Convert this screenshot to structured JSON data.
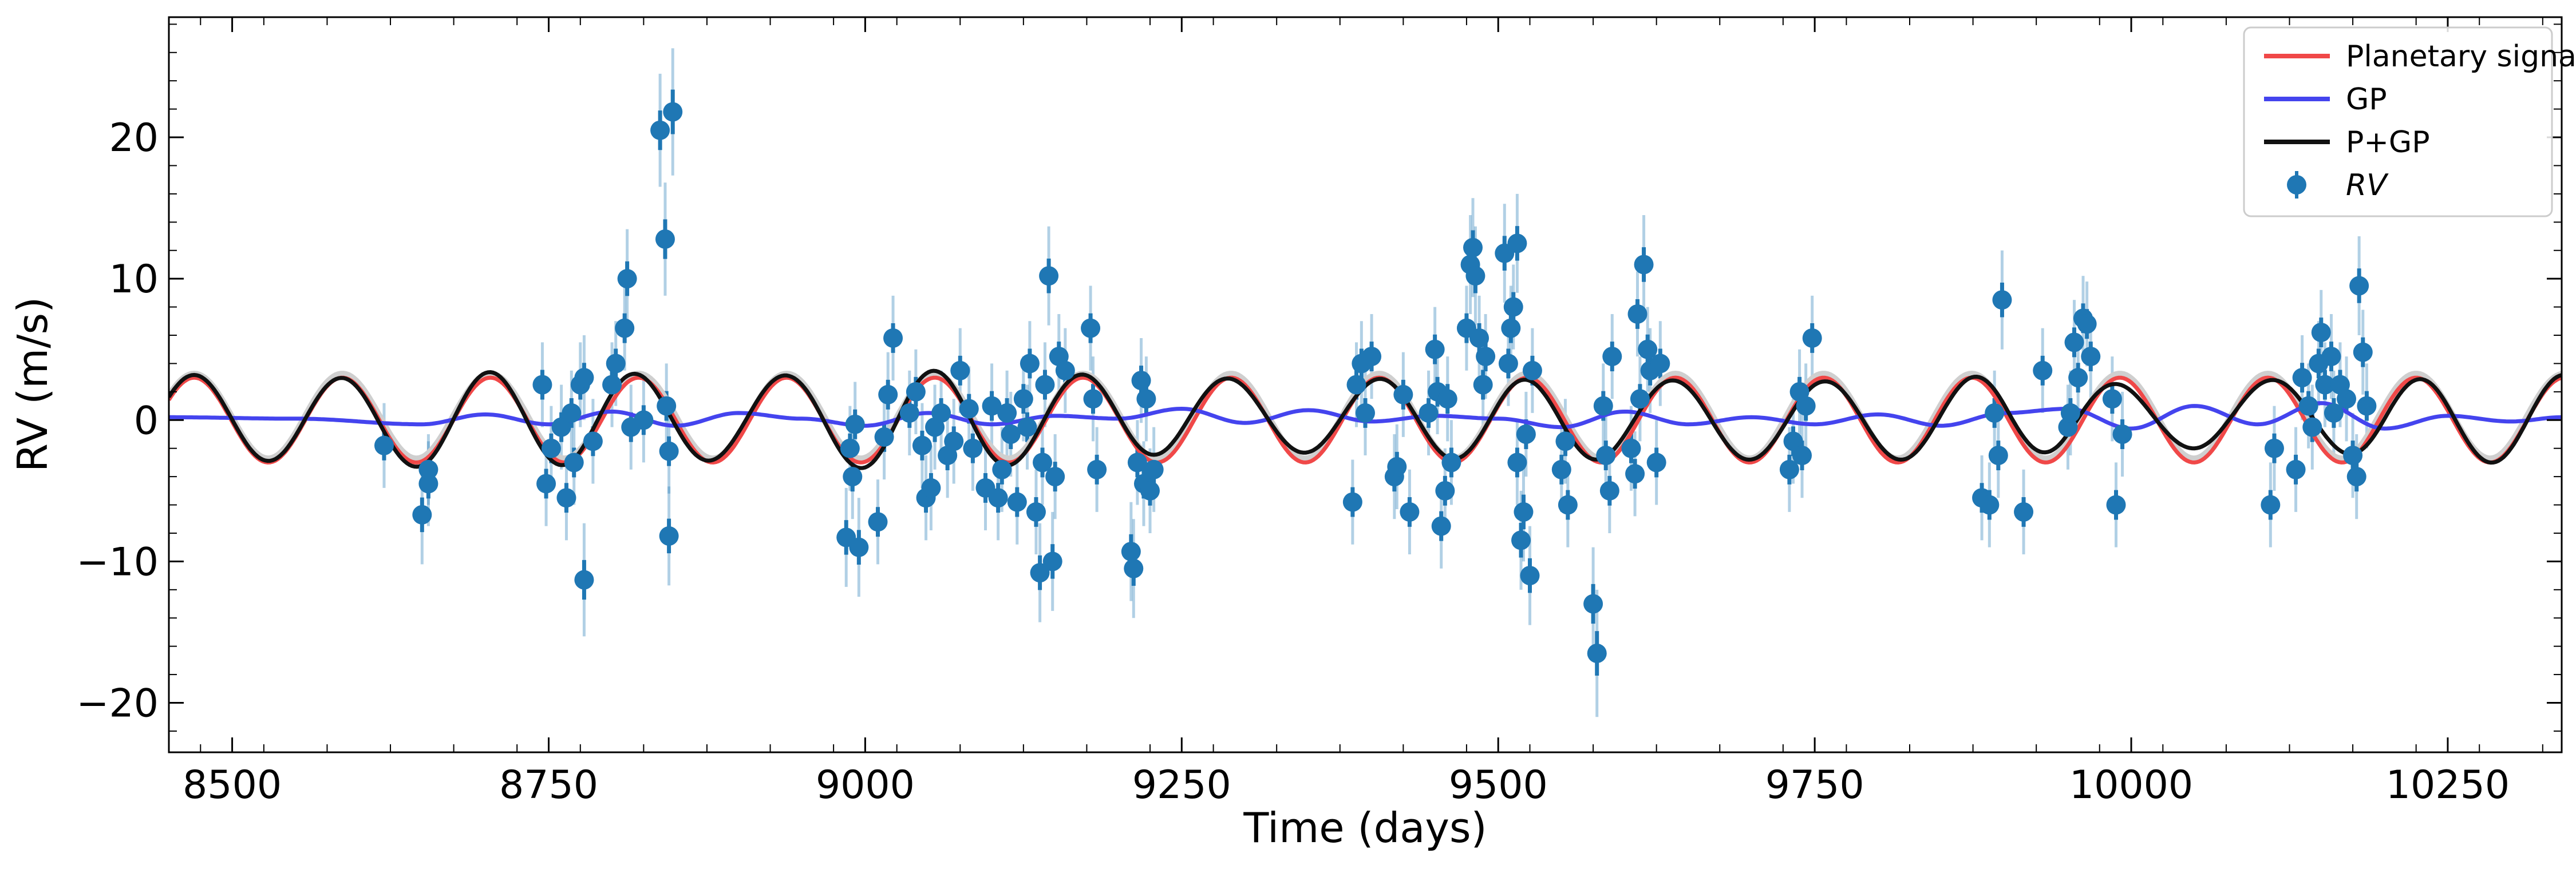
{
  "chart_data": {
    "type": "line",
    "title": "",
    "xlabel": "Time (days)",
    "ylabel": "RV (m/s)",
    "xlim": [
      8450,
      10340
    ],
    "ylim": [
      -23.5,
      28.5
    ],
    "grid": false,
    "legend_position": "top-right",
    "xticks": [
      8500,
      8750,
      9000,
      9250,
      9500,
      9750,
      10000,
      10250
    ],
    "xtick_labels": [
      "8500",
      "8750",
      "9000",
      "9250",
      "9500",
      "9750",
      "10000",
      "10250"
    ],
    "yticks": [
      -20,
      -10,
      0,
      10,
      20
    ],
    "ytick_labels": [
      "−20",
      "−10",
      "0",
      "10",
      "20"
    ],
    "legend": [
      {
        "label": "Planetary signal",
        "color": "#f04848",
        "kind": "line"
      },
      {
        "label": "GP",
        "color": "#4444ee",
        "kind": "line"
      },
      {
        "label": "P+GP",
        "color": "#111111",
        "kind": "line"
      },
      {
        "label": "RV",
        "color": "#1f77b4",
        "kind": "errorbar",
        "italic": true
      }
    ],
    "series": [
      {
        "name": "Planetary signal",
        "color": "#f04848",
        "model": {
          "amplitude": 3.0,
          "period": 117,
          "t_peak": 8470
        }
      },
      {
        "name": "GP",
        "color": "#4444ee",
        "x": [
          8450,
          8550,
          8650,
          8700,
          8750,
          8800,
          8850,
          8900,
          8950,
          9000,
          9050,
          9100,
          9150,
          9200,
          9250,
          9300,
          9350,
          9400,
          9450,
          9500,
          9550,
          9600,
          9650,
          9700,
          9750,
          9800,
          9850,
          9900,
          9950,
          10000,
          10050,
          10100,
          10150,
          10200,
          10250,
          10300,
          10340
        ],
        "y": [
          0.2,
          0.1,
          -0.3,
          0.4,
          -0.3,
          0.6,
          -0.4,
          0.5,
          0.1,
          -0.4,
          0.5,
          -0.3,
          0.3,
          0.1,
          0.8,
          -0.2,
          0.7,
          -0.1,
          0.3,
          0.1,
          -0.5,
          0.6,
          -0.3,
          0.2,
          -0.3,
          0.4,
          -0.4,
          0.5,
          0.8,
          -0.6,
          1.0,
          -0.3,
          1.2,
          -0.6,
          0.3,
          -0.1,
          0.2
        ]
      },
      {
        "name": "P+GP",
        "color": "#111111",
        "model": "Planetary signal + GP"
      },
      {
        "name": "RV",
        "color": "#1f77b4",
        "points": [
          {
            "x": 8620,
            "y": -1.8,
            "err": 3.0
          },
          {
            "x": 8650,
            "y": -6.7,
            "err": 3.5
          },
          {
            "x": 8655,
            "y": -4.5,
            "err": 3.0
          },
          {
            "x": 8655,
            "y": -3.5,
            "err": 2.5
          },
          {
            "x": 8745,
            "y": 2.5,
            "err": 3.0
          },
          {
            "x": 8748,
            "y": -4.5,
            "err": 3.0
          },
          {
            "x": 8752,
            "y": -2.0,
            "err": 3.0
          },
          {
            "x": 8760,
            "y": -0.5,
            "err": 3.0
          },
          {
            "x": 8764,
            "y": -5.5,
            "err": 3.0
          },
          {
            "x": 8768,
            "y": 0.5,
            "err": 3.0
          },
          {
            "x": 8770,
            "y": -3.0,
            "err": 3.0
          },
          {
            "x": 8775,
            "y": 2.5,
            "err": 3.0
          },
          {
            "x": 8778,
            "y": 3.0,
            "err": 3.0
          },
          {
            "x": 8778,
            "y": -11.3,
            "err": 4.0
          },
          {
            "x": 8785,
            "y": -1.5,
            "err": 3.0
          },
          {
            "x": 8800,
            "y": 2.5,
            "err": 3.0
          },
          {
            "x": 8803,
            "y": 4.0,
            "err": 3.0
          },
          {
            "x": 8810,
            "y": 6.5,
            "err": 3.0
          },
          {
            "x": 8812,
            "y": 10.0,
            "err": 3.5
          },
          {
            "x": 8815,
            "y": -0.5,
            "err": 3.0
          },
          {
            "x": 8825,
            "y": 0.0,
            "err": 3.0
          },
          {
            "x": 8838,
            "y": 20.5,
            "err": 4.0
          },
          {
            "x": 8842,
            "y": 12.8,
            "err": 4.0
          },
          {
            "x": 8845,
            "y": -2.2,
            "err": 3.0
          },
          {
            "x": 8848,
            "y": 21.8,
            "err": 4.5
          },
          {
            "x": 8845,
            "y": -8.2,
            "err": 3.5
          },
          {
            "x": 8843,
            "y": 1.0,
            "err": 3.0
          },
          {
            "x": 8985,
            "y": -8.3,
            "err": 3.5
          },
          {
            "x": 8988,
            "y": -2.0,
            "err": 3.0
          },
          {
            "x": 8990,
            "y": -4.0,
            "err": 3.0
          },
          {
            "x": 8992,
            "y": -0.3,
            "err": 3.0
          },
          {
            "x": 8995,
            "y": -9.0,
            "err": 3.5
          },
          {
            "x": 9010,
            "y": -7.2,
            "err": 3.0
          },
          {
            "x": 9015,
            "y": -1.2,
            "err": 3.0
          },
          {
            "x": 9018,
            "y": 1.8,
            "err": 3.0
          },
          {
            "x": 9022,
            "y": 5.8,
            "err": 3.0
          },
          {
            "x": 9035,
            "y": 0.5,
            "err": 3.0
          },
          {
            "x": 9040,
            "y": 2.0,
            "err": 3.0
          },
          {
            "x": 9045,
            "y": -1.8,
            "err": 3.0
          },
          {
            "x": 9048,
            "y": -5.5,
            "err": 3.0
          },
          {
            "x": 9052,
            "y": -4.8,
            "err": 3.0
          },
          {
            "x": 9055,
            "y": -0.5,
            "err": 3.0
          },
          {
            "x": 9060,
            "y": 0.5,
            "err": 3.0
          },
          {
            "x": 9065,
            "y": -2.5,
            "err": 3.0
          },
          {
            "x": 9070,
            "y": -1.5,
            "err": 3.0
          },
          {
            "x": 9075,
            "y": 3.5,
            "err": 3.0
          },
          {
            "x": 9082,
            "y": 0.8,
            "err": 3.0
          },
          {
            "x": 9085,
            "y": -2.0,
            "err": 3.0
          },
          {
            "x": 9095,
            "y": -4.8,
            "err": 3.0
          },
          {
            "x": 9100,
            "y": 1.0,
            "err": 3.0
          },
          {
            "x": 9105,
            "y": -5.5,
            "err": 3.0
          },
          {
            "x": 9108,
            "y": -3.5,
            "err": 3.0
          },
          {
            "x": 9112,
            "y": 0.5,
            "err": 3.0
          },
          {
            "x": 9115,
            "y": -1.0,
            "err": 3.0
          },
          {
            "x": 9120,
            "y": -5.8,
            "err": 3.0
          },
          {
            "x": 9125,
            "y": 1.5,
            "err": 3.0
          },
          {
            "x": 9128,
            "y": -0.5,
            "err": 3.0
          },
          {
            "x": 9130,
            "y": 4.0,
            "err": 3.0
          },
          {
            "x": 9135,
            "y": -6.5,
            "err": 3.0
          },
          {
            "x": 9138,
            "y": -10.8,
            "err": 3.5
          },
          {
            "x": 9140,
            "y": -3.0,
            "err": 3.0
          },
          {
            "x": 9142,
            "y": 2.5,
            "err": 3.0
          },
          {
            "x": 9145,
            "y": 10.2,
            "err": 3.5
          },
          {
            "x": 9148,
            "y": -10.0,
            "err": 3.5
          },
          {
            "x": 9150,
            "y": -4.0,
            "err": 3.0
          },
          {
            "x": 9153,
            "y": 4.5,
            "err": 3.0
          },
          {
            "x": 9158,
            "y": 3.5,
            "err": 3.0
          },
          {
            "x": 9178,
            "y": 6.5,
            "err": 3.0
          },
          {
            "x": 9180,
            "y": 1.5,
            "err": 3.0
          },
          {
            "x": 9183,
            "y": -3.5,
            "err": 3.0
          },
          {
            "x": 9210,
            "y": -9.3,
            "err": 3.5
          },
          {
            "x": 9212,
            "y": -10.5,
            "err": 3.5
          },
          {
            "x": 9215,
            "y": -3.0,
            "err": 3.0
          },
          {
            "x": 9218,
            "y": 2.8,
            "err": 3.0
          },
          {
            "x": 9220,
            "y": -4.5,
            "err": 3.0
          },
          {
            "x": 9222,
            "y": 1.5,
            "err": 3.0
          },
          {
            "x": 9225,
            "y": -5.0,
            "err": 3.0
          },
          {
            "x": 9228,
            "y": -3.5,
            "err": 3.0
          },
          {
            "x": 9385,
            "y": -5.8,
            "err": 3.0
          },
          {
            "x": 9388,
            "y": 2.5,
            "err": 3.0
          },
          {
            "x": 9392,
            "y": 4.0,
            "err": 3.0
          },
          {
            "x": 9395,
            "y": 0.5,
            "err": 3.0
          },
          {
            "x": 9400,
            "y": 4.5,
            "err": 3.0
          },
          {
            "x": 9418,
            "y": -4.0,
            "err": 3.0
          },
          {
            "x": 9420,
            "y": -3.3,
            "err": 3.0
          },
          {
            "x": 9425,
            "y": 1.8,
            "err": 3.0
          },
          {
            "x": 9430,
            "y": -6.5,
            "err": 3.0
          },
          {
            "x": 9445,
            "y": 0.5,
            "err": 3.0
          },
          {
            "x": 9450,
            "y": 5.0,
            "err": 3.0
          },
          {
            "x": 9452,
            "y": 2.0,
            "err": 3.0
          },
          {
            "x": 9455,
            "y": -7.5,
            "err": 3.0
          },
          {
            "x": 9458,
            "y": -5.0,
            "err": 3.0
          },
          {
            "x": 9460,
            "y": 1.5,
            "err": 3.0
          },
          {
            "x": 9463,
            "y": -3.0,
            "err": 3.0
          },
          {
            "x": 9475,
            "y": 6.5,
            "err": 3.0
          },
          {
            "x": 9478,
            "y": 11.0,
            "err": 3.5
          },
          {
            "x": 9480,
            "y": 12.2,
            "err": 3.5
          },
          {
            "x": 9482,
            "y": 10.2,
            "err": 3.5
          },
          {
            "x": 9485,
            "y": 5.8,
            "err": 3.0
          },
          {
            "x": 9488,
            "y": 2.5,
            "err": 3.0
          },
          {
            "x": 9490,
            "y": 4.5,
            "err": 3.0
          },
          {
            "x": 9505,
            "y": 11.8,
            "err": 3.5
          },
          {
            "x": 9508,
            "y": 4.0,
            "err": 3.0
          },
          {
            "x": 9510,
            "y": 6.5,
            "err": 3.0
          },
          {
            "x": 9512,
            "y": 8.0,
            "err": 3.0
          },
          {
            "x": 9515,
            "y": 12.5,
            "err": 3.5
          },
          {
            "x": 9515,
            "y": -3.0,
            "err": 3.0
          },
          {
            "x": 9518,
            "y": -8.5,
            "err": 3.5
          },
          {
            "x": 9520,
            "y": -6.5,
            "err": 3.5
          },
          {
            "x": 9522,
            "y": -1.0,
            "err": 3.0
          },
          {
            "x": 9525,
            "y": -11.0,
            "err": 3.5
          },
          {
            "x": 9527,
            "y": 3.5,
            "err": 3.0
          },
          {
            "x": 9550,
            "y": -3.5,
            "err": 3.0
          },
          {
            "x": 9553,
            "y": -1.5,
            "err": 3.0
          },
          {
            "x": 9555,
            "y": -6.0,
            "err": 3.0
          },
          {
            "x": 9575,
            "y": -13.0,
            "err": 4.0
          },
          {
            "x": 9578,
            "y": -16.5,
            "err": 4.5
          },
          {
            "x": 9583,
            "y": 1.0,
            "err": 3.0
          },
          {
            "x": 9585,
            "y": -2.5,
            "err": 3.0
          },
          {
            "x": 9588,
            "y": -5.0,
            "err": 3.0
          },
          {
            "x": 9590,
            "y": 4.5,
            "err": 3.0
          },
          {
            "x": 9605,
            "y": -2.0,
            "err": 3.0
          },
          {
            "x": 9608,
            "y": -3.8,
            "err": 3.0
          },
          {
            "x": 9610,
            "y": 7.5,
            "err": 3.0
          },
          {
            "x": 9612,
            "y": 1.5,
            "err": 3.0
          },
          {
            "x": 9615,
            "y": 11.0,
            "err": 3.5
          },
          {
            "x": 9618,
            "y": 5.0,
            "err": 3.0
          },
          {
            "x": 9620,
            "y": 3.5,
            "err": 3.0
          },
          {
            "x": 9625,
            "y": -3.0,
            "err": 3.0
          },
          {
            "x": 9628,
            "y": 4.0,
            "err": 3.0
          },
          {
            "x": 9730,
            "y": -3.5,
            "err": 3.0
          },
          {
            "x": 9733,
            "y": -1.5,
            "err": 3.0
          },
          {
            "x": 9738,
            "y": 2.0,
            "err": 3.0
          },
          {
            "x": 9740,
            "y": -2.5,
            "err": 3.0
          },
          {
            "x": 9743,
            "y": 1.0,
            "err": 3.0
          },
          {
            "x": 9748,
            "y": 5.8,
            "err": 3.0
          },
          {
            "x": 9882,
            "y": -5.5,
            "err": 3.0
          },
          {
            "x": 9888,
            "y": -6.0,
            "err": 3.0
          },
          {
            "x": 9892,
            "y": 0.5,
            "err": 3.0
          },
          {
            "x": 9895,
            "y": -2.5,
            "err": 3.0
          },
          {
            "x": 9898,
            "y": 8.5,
            "err": 3.5
          },
          {
            "x": 9915,
            "y": -6.5,
            "err": 3.0
          },
          {
            "x": 9930,
            "y": 3.5,
            "err": 3.0
          },
          {
            "x": 9950,
            "y": -0.5,
            "err": 3.0
          },
          {
            "x": 9952,
            "y": 0.5,
            "err": 3.0
          },
          {
            "x": 9955,
            "y": 5.5,
            "err": 3.0
          },
          {
            "x": 9958,
            "y": 3.0,
            "err": 3.0
          },
          {
            "x": 9962,
            "y": 7.2,
            "err": 3.0
          },
          {
            "x": 9965,
            "y": 6.8,
            "err": 3.0
          },
          {
            "x": 9968,
            "y": 4.5,
            "err": 3.0
          },
          {
            "x": 9985,
            "y": 1.5,
            "err": 3.0
          },
          {
            "x": 9988,
            "y": -6.0,
            "err": 3.0
          },
          {
            "x": 9993,
            "y": -1.0,
            "err": 3.0
          },
          {
            "x": 10110,
            "y": -6.0,
            "err": 3.0
          },
          {
            "x": 10113,
            "y": -2.0,
            "err": 3.0
          },
          {
            "x": 10130,
            "y": -3.5,
            "err": 3.0
          },
          {
            "x": 10135,
            "y": 3.0,
            "err": 3.0
          },
          {
            "x": 10140,
            "y": 1.0,
            "err": 3.0
          },
          {
            "x": 10143,
            "y": -0.5,
            "err": 3.0
          },
          {
            "x": 10148,
            "y": 4.0,
            "err": 3.0
          },
          {
            "x": 10150,
            "y": 6.2,
            "err": 3.0
          },
          {
            "x": 10153,
            "y": 2.5,
            "err": 3.0
          },
          {
            "x": 10158,
            "y": 4.5,
            "err": 3.0
          },
          {
            "x": 10160,
            "y": 0.5,
            "err": 3.0
          },
          {
            "x": 10165,
            "y": 2.5,
            "err": 3.0
          },
          {
            "x": 10170,
            "y": 1.5,
            "err": 3.0
          },
          {
            "x": 10175,
            "y": -2.5,
            "err": 3.0
          },
          {
            "x": 10178,
            "y": -4.0,
            "err": 3.0
          },
          {
            "x": 10180,
            "y": 9.5,
            "err": 3.5
          },
          {
            "x": 10183,
            "y": 4.8,
            "err": 3.0
          },
          {
            "x": 10186,
            "y": 1.0,
            "err": 3.0
          }
        ]
      }
    ]
  }
}
